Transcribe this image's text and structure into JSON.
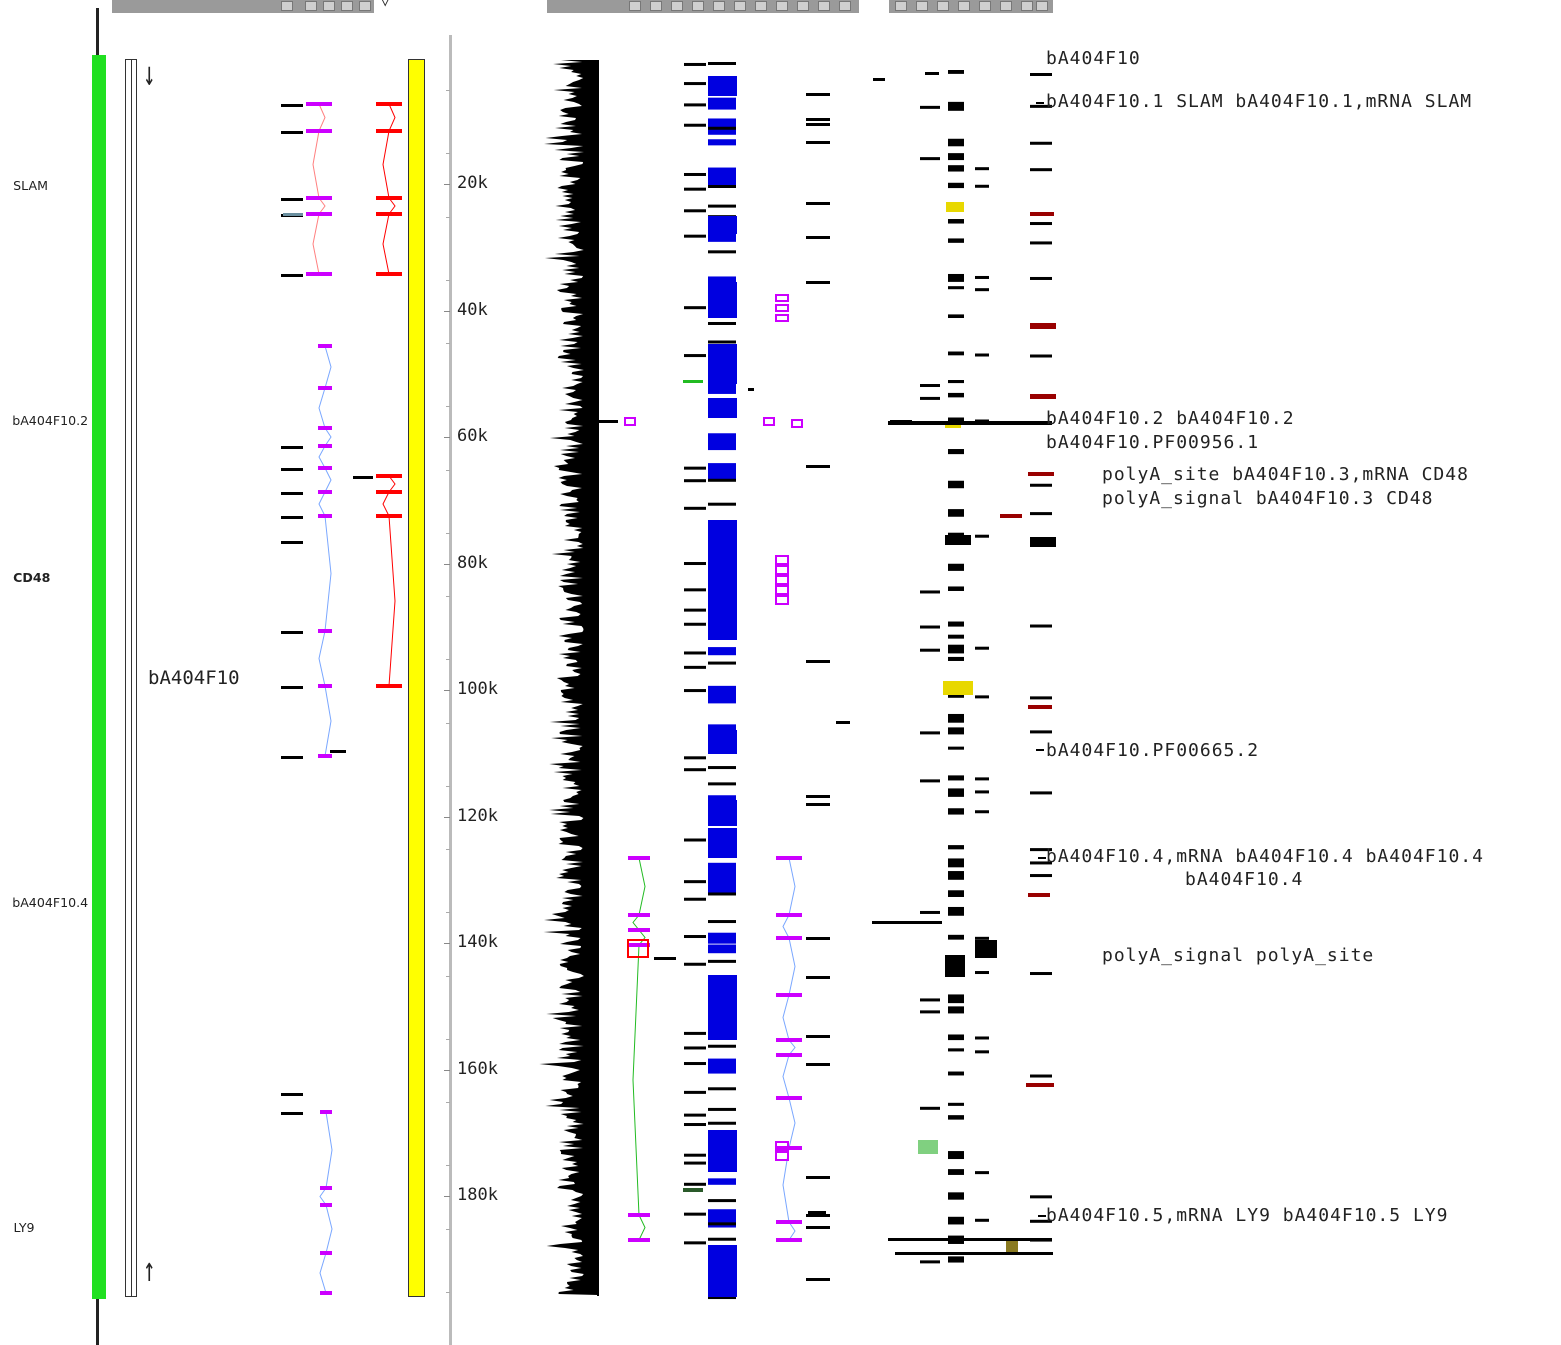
{
  "contig": {
    "name": "bA404F10",
    "strand_top_glyph": "↓",
    "strand_bottom_glyph": "↑"
  },
  "toolbar": {
    "group1_extra": "▽",
    "icon": "checkbox-icon"
  },
  "gene_labels": [
    {
      "id": "slam",
      "text": "SLAM",
      "pos": 186
    },
    {
      "id": "ba404f10-2",
      "text": "bA404F10.2",
      "pos": 421
    },
    {
      "id": "cd48",
      "text": "CD48",
      "pos": 578
    },
    {
      "id": "ba404f10-4",
      "text": "bA404F10.4",
      "pos": 903
    },
    {
      "id": "ly9",
      "text": "LY9",
      "pos": 1228
    }
  ],
  "scale": {
    "ticks": [
      "20k",
      "40k",
      "60k",
      "80k",
      "100k",
      "120k",
      "140k",
      "160k",
      "180k"
    ]
  },
  "feature_labels": [
    {
      "id": "f1",
      "text": "bA404F10"
    },
    {
      "id": "f2",
      "text": "bA404F10.1 SLAM bA404F10.1,mRNA SLAM"
    },
    {
      "id": "f3",
      "text": "bA404F10.2 bA404F10.2"
    },
    {
      "id": "f4",
      "text": "bA404F10.PF00956.1"
    },
    {
      "id": "f5",
      "text": "polyA_site bA404F10.3,mRNA CD48"
    },
    {
      "id": "f6",
      "text": "polyA_signal bA404F10.3 CD48"
    },
    {
      "id": "f7",
      "text": "bA404F10.PF00665.2"
    },
    {
      "id": "f8",
      "text": "bA404F10.4,mRNA bA404F10.4 bA404F10.4"
    },
    {
      "id": "f9",
      "text": "bA404F10.4"
    },
    {
      "id": "f10",
      "text": "polyA_signal polyA_site"
    },
    {
      "id": "f11",
      "text": "bA404F10.5,mRNA LY9 bA404F10.5 LY9"
    }
  ],
  "colors": {
    "scale_bar": "#20e020",
    "sequence_bar": "#ffff00",
    "match_blue": "#0000e0",
    "transcript_magenta": "#cc00ff",
    "transcript_red": "#ff0000",
    "highlight_yellow": "#e8d800",
    "intron_blue": "#7aa7ff",
    "intron_pink": "#ff8080",
    "intron_green": "#22bb22",
    "dark_red": "#990000",
    "olive": "#8a7a20",
    "pale_green": "#80d080"
  }
}
